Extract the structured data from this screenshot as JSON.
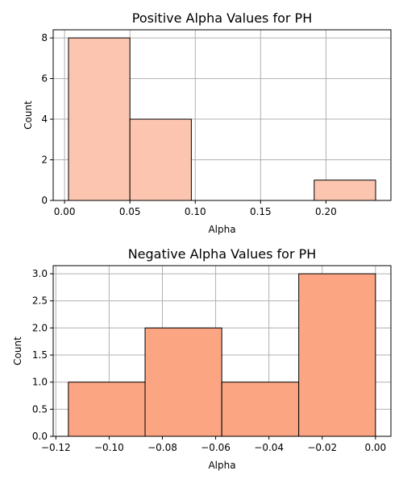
{
  "chart_data": [
    {
      "type": "bar",
      "title": "Positive Alpha Values for PH",
      "xlabel": "Alpha",
      "ylabel": "Count",
      "bins": [
        {
          "x0": 0.003,
          "x1": 0.05,
          "count": 8
        },
        {
          "x0": 0.05,
          "x1": 0.097,
          "count": 4
        },
        {
          "x0": 0.097,
          "x1": 0.144,
          "count": 0
        },
        {
          "x0": 0.144,
          "x1": 0.191,
          "count": 0
        },
        {
          "x0": 0.191,
          "x1": 0.238,
          "count": 1
        }
      ],
      "xlim": [
        -0.0087,
        0.2497
      ],
      "ylim": [
        0,
        8.4
      ],
      "xticks": [
        0.0,
        0.05,
        0.1,
        0.15,
        0.2
      ],
      "xtick_labels": [
        "0.00",
        "0.05",
        "0.10",
        "0.15",
        "0.20"
      ],
      "yticks": [
        0,
        2,
        4,
        6,
        8
      ],
      "ytick_labels": [
        "0",
        "2",
        "4",
        "6",
        "8"
      ],
      "grid": true,
      "bar_color": "#fcc5b0",
      "edge_color": "#000000"
    },
    {
      "type": "bar",
      "title": "Negative Alpha Values for PH",
      "xlabel": "Alpha",
      "ylabel": "Count",
      "bins": [
        {
          "x0": -0.1153,
          "x1": -0.0865,
          "count": 1
        },
        {
          "x0": -0.0865,
          "x1": -0.0577,
          "count": 2
        },
        {
          "x0": -0.0577,
          "x1": -0.0288,
          "count": 1
        },
        {
          "x0": -0.0288,
          "x1": 0.0,
          "count": 3
        }
      ],
      "xlim": [
        -0.121,
        0.0058
      ],
      "ylim": [
        0,
        3.15
      ],
      "xticks": [
        -0.12,
        -0.1,
        -0.08,
        -0.06,
        -0.04,
        -0.02,
        0.0
      ],
      "xtick_labels": [
        "−0.12",
        "−0.10",
        "−0.08",
        "−0.06",
        "−0.04",
        "−0.02",
        "0.00"
      ],
      "yticks": [
        0,
        0.5,
        1.0,
        1.5,
        2.0,
        2.5,
        3.0
      ],
      "ytick_labels": [
        "0.0",
        "0.5",
        "1.0",
        "1.5",
        "2.0",
        "2.5",
        "3.0"
      ],
      "grid": true,
      "bar_color": "#fca583",
      "edge_color": "#000000"
    }
  ]
}
